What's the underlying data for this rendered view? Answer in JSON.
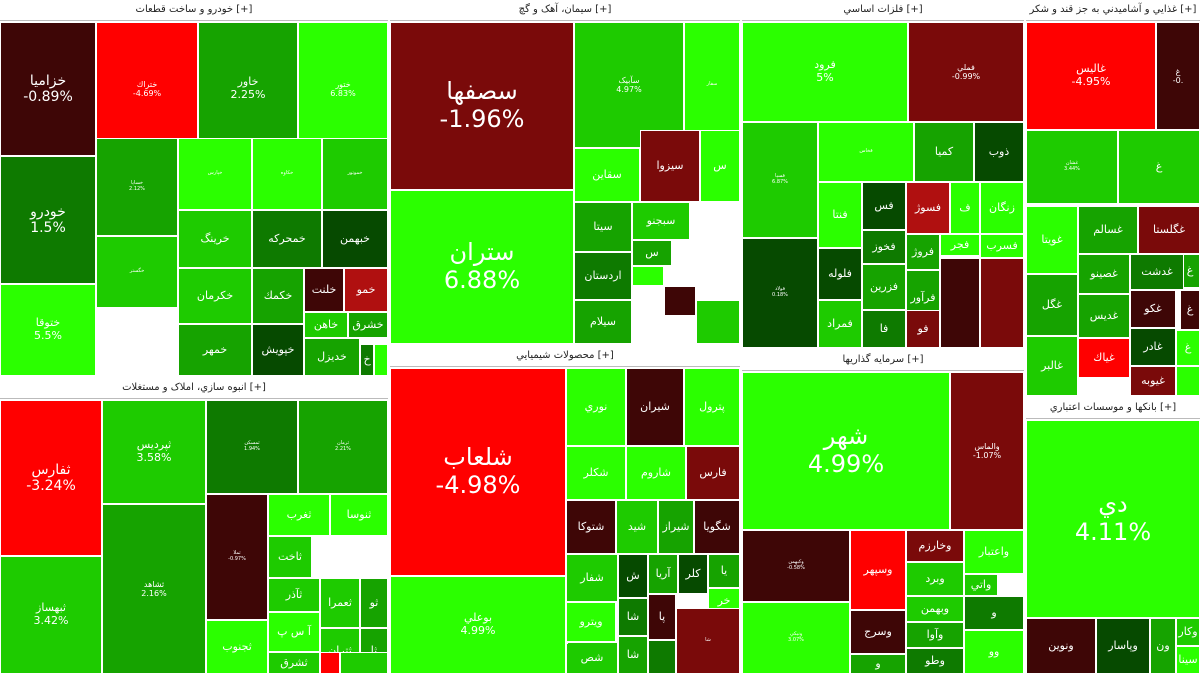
{
  "sectors": [
    {
      "title": "خودرو و ساخت قطعات [+]",
      "tiles": [
        {
          "s": "خزاميا",
          "p": "-0.89%"
        },
        {
          "s": "ختراك",
          "p": "-4.69%"
        },
        {
          "s": "خاور",
          "p": "2.25%"
        },
        {
          "s": "ختور",
          "p": "6.83%"
        },
        {
          "s": "خودرو",
          "p": "1.5%"
        },
        {
          "s": "ختوقا",
          "p": "5.5%"
        },
        {
          "s": "خساپا",
          "p": "2.12%"
        },
        {
          "s": "خپارس",
          "p": ""
        },
        {
          "s": "خكاوه",
          "p": ""
        },
        {
          "s": "خموتور",
          "p": ""
        },
        {
          "s": "خرينگ",
          "p": ""
        },
        {
          "s": "خمحركه",
          "p": ""
        },
        {
          "s": "خبهمن",
          "p": ""
        },
        {
          "s": "خگستر",
          "p": ""
        },
        {
          "s": "خكرمان",
          "p": ""
        },
        {
          "s": "خكمك",
          "p": ""
        },
        {
          "s": "خلنت",
          "p": ""
        },
        {
          "s": "خمو",
          "p": ""
        },
        {
          "s": "خاهن",
          "p": ""
        },
        {
          "s": "خشرق",
          "p": ""
        },
        {
          "s": "خمهر",
          "p": ""
        },
        {
          "s": "خپويش",
          "p": ""
        },
        {
          "s": "خديزل",
          "p": ""
        },
        {
          "s": "خ",
          "p": ""
        },
        {
          "s": "",
          "p": ""
        }
      ]
    },
    {
      "title": "سيمان، آهک و گچ [+]",
      "tiles": [
        {
          "s": "سصفها",
          "p": "-1.96%"
        },
        {
          "s": "ستران",
          "p": "6.88%"
        },
        {
          "s": "سآبيک",
          "p": "4.97%"
        },
        {
          "s": "سفار",
          "p": ""
        },
        {
          "s": "سقاين",
          "p": ""
        },
        {
          "s": "سيزوا",
          "p": ""
        },
        {
          "s": "س",
          "p": ""
        },
        {
          "s": "سيتا",
          "p": ""
        },
        {
          "s": "سبجنو",
          "p": ""
        },
        {
          "s": "اردستان",
          "p": ""
        },
        {
          "s": "س",
          "p": ""
        },
        {
          "s": "سيلام",
          "p": ""
        },
        {
          "s": "",
          "p": ""
        },
        {
          "s": "",
          "p": ""
        },
        {
          "s": "",
          "p": ""
        }
      ]
    },
    {
      "title": "فلزات اساسي [+]",
      "tiles": [
        {
          "s": "فرود",
          "p": "5%"
        },
        {
          "s": "فملي",
          "p": "-0.99%"
        },
        {
          "s": "فسپا",
          "p": "6.87%"
        },
        {
          "s": "فخاس",
          "p": ""
        },
        {
          "s": "كميا",
          "p": ""
        },
        {
          "s": "ذوب",
          "p": ""
        },
        {
          "s": "فولاد",
          "p": "0.18%"
        },
        {
          "s": "فس",
          "p": ""
        },
        {
          "s": "فسوژ",
          "p": ""
        },
        {
          "s": "ف",
          "p": ""
        },
        {
          "s": "زنگان",
          "p": ""
        },
        {
          "s": "فنتا",
          "p": ""
        },
        {
          "s": "فخوز",
          "p": ""
        },
        {
          "s": "فروژ",
          "p": ""
        },
        {
          "s": "فجر",
          "p": ""
        },
        {
          "s": "فسرب",
          "p": ""
        },
        {
          "s": "فلوله",
          "p": ""
        },
        {
          "s": "فزرين",
          "p": ""
        },
        {
          "s": "فرآور",
          "p": ""
        },
        {
          "s": "فمراد",
          "p": ""
        },
        {
          "s": "فا",
          "p": ""
        },
        {
          "s": "فو",
          "p": ""
        },
        {
          "s": "",
          "p": ""
        },
        {
          "s": "",
          "p": ""
        }
      ]
    },
    {
      "title": "غذايي و آشاميدني به جز قند و شکر [+]",
      "tiles": [
        {
          "s": "غاليس",
          "p": "-4.95%"
        },
        {
          "s": "غ",
          "p": "-0."
        },
        {
          "s": "غشان",
          "p": "3.44%"
        },
        {
          "s": "غ",
          "p": ""
        },
        {
          "s": "غويتا",
          "p": ""
        },
        {
          "s": "غسالم",
          "p": ""
        },
        {
          "s": "غگلستا",
          "p": ""
        },
        {
          "s": "غ",
          "p": ""
        },
        {
          "s": "غصينو",
          "p": ""
        },
        {
          "s": "غدشت",
          "p": ""
        },
        {
          "s": "غ",
          "p": ""
        },
        {
          "s": "غگل",
          "p": ""
        },
        {
          "s": "غديس",
          "p": ""
        },
        {
          "s": "غكو",
          "p": ""
        },
        {
          "s": "غ",
          "p": ""
        },
        {
          "s": "غادر",
          "p": ""
        },
        {
          "s": "غالبر",
          "p": ""
        },
        {
          "s": "غياك",
          "p": ""
        },
        {
          "s": "غيوبه",
          "p": ""
        },
        {
          "s": "",
          "p": ""
        }
      ]
    },
    {
      "title": "انبوه سازي، املاک و مستغلات [+]",
      "tiles": [
        {
          "s": "ثفارس",
          "p": "-3.24%"
        },
        {
          "s": "ثبهساز",
          "p": "3.42%"
        },
        {
          "s": "ثپرديس",
          "p": "3.58%"
        },
        {
          "s": "ثمسكن",
          "p": "1.94%"
        },
        {
          "s": "ثرمان",
          "p": "2.21%"
        },
        {
          "s": "ثشاهد",
          "p": "2.16%"
        },
        {
          "s": "ثملا",
          "p": "-0.97%"
        },
        {
          "s": "ثغرب",
          "p": ""
        },
        {
          "s": "ثنوسا",
          "p": ""
        },
        {
          "s": "ثاخت",
          "p": ""
        },
        {
          "s": "ثآذر",
          "p": ""
        },
        {
          "s": "ثعمرا",
          "p": ""
        },
        {
          "s": "ثو",
          "p": ""
        },
        {
          "s": "آ س پ",
          "p": ""
        },
        {
          "s": "ثتران",
          "p": ""
        },
        {
          "s": "ثا",
          "p": ""
        },
        {
          "s": "ثجنوب",
          "p": ""
        },
        {
          "s": "ثشرق",
          "p": ""
        },
        {
          "s": "",
          "p": ""
        },
        {
          "s": "",
          "p": ""
        }
      ]
    },
    {
      "title": "محصولات شيميايي [+]",
      "tiles": [
        {
          "s": "شلعاب",
          "p": "-4.98%"
        },
        {
          "s": "بوعلي",
          "p": "4.99%"
        },
        {
          "s": "نوري",
          "p": ""
        },
        {
          "s": "شيران",
          "p": ""
        },
        {
          "s": "پترول",
          "p": ""
        },
        {
          "s": "شكلر",
          "p": ""
        },
        {
          "s": "شاروم",
          "p": ""
        },
        {
          "s": "فارس",
          "p": ""
        },
        {
          "s": "شتوكا",
          "p": ""
        },
        {
          "s": "شيد",
          "p": ""
        },
        {
          "s": "شيراز",
          "p": ""
        },
        {
          "s": "شگويا",
          "p": ""
        },
        {
          "s": "شفار",
          "p": ""
        },
        {
          "s": "ش",
          "p": ""
        },
        {
          "s": "آريا",
          "p": ""
        },
        {
          "s": "كلر",
          "p": ""
        },
        {
          "s": "يا",
          "p": ""
        },
        {
          "s": "خر",
          "p": ""
        },
        {
          "s": "شا",
          "p": ""
        },
        {
          "s": "پا",
          "p": ""
        },
        {
          "s": "ويترو",
          "p": ""
        },
        {
          "s": "شا",
          "p": ""
        },
        {
          "s": "شص",
          "p": ""
        },
        {
          "s": "شا",
          "p": ""
        },
        {
          "s": "",
          "p": ""
        },
        {
          "s": "",
          "p": ""
        }
      ]
    },
    {
      "title": "سرمايه گذاريها [+]",
      "tiles": [
        {
          "s": "شهر",
          "p": "4.99%"
        },
        {
          "s": "والماس",
          "p": "-1.07%"
        },
        {
          "s": "وكبهمن",
          "p": "-0.58%"
        },
        {
          "s": "وسپهر",
          "p": ""
        },
        {
          "s": "وخارزم",
          "p": ""
        },
        {
          "s": "واعتبار",
          "p": ""
        },
        {
          "s": "وبرد",
          "p": ""
        },
        {
          "s": "واتي",
          "p": ""
        },
        {
          "s": "وبهمن",
          "p": ""
        },
        {
          "s": "ونيكي",
          "p": "3.07%"
        },
        {
          "s": "و",
          "p": ""
        },
        {
          "s": "وآوا",
          "p": ""
        },
        {
          "s": "وسرج",
          "p": ""
        },
        {
          "s": "وو",
          "p": ""
        },
        {
          "s": "وطو",
          "p": ""
        },
        {
          "s": "و",
          "p": ""
        }
      ]
    },
    {
      "title": "بانکها و موسسات اعتباري [+]",
      "tiles": [
        {
          "s": "دي",
          "p": "4.11%"
        },
        {
          "s": "ونوين",
          "p": ""
        },
        {
          "s": "وپاسار",
          "p": ""
        },
        {
          "s": "ون",
          "p": ""
        },
        {
          "s": "وكار",
          "p": ""
        },
        {
          "s": "سينا",
          "p": ""
        }
      ]
    }
  ]
}
